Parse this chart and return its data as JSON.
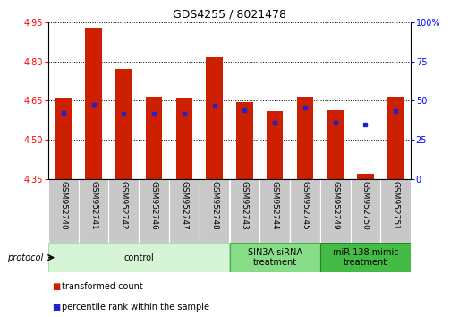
{
  "title": "GDS4255 / 8021478",
  "samples": [
    "GSM952740",
    "GSM952741",
    "GSM952742",
    "GSM952746",
    "GSM952747",
    "GSM952748",
    "GSM952743",
    "GSM952744",
    "GSM952745",
    "GSM952749",
    "GSM952750",
    "GSM952751"
  ],
  "bar_bottom": 4.35,
  "bar_tops": [
    4.66,
    4.93,
    4.77,
    4.665,
    4.66,
    4.815,
    4.645,
    4.61,
    4.665,
    4.615,
    4.37,
    4.665
  ],
  "blue_dot_values": [
    4.605,
    4.635,
    4.6,
    4.6,
    4.6,
    4.63,
    4.615,
    4.565,
    4.625,
    4.565,
    4.56,
    4.61
  ],
  "ylim": [
    4.35,
    4.95
  ],
  "y2lim": [
    0,
    100
  ],
  "yticks": [
    4.35,
    4.5,
    4.65,
    4.8,
    4.95
  ],
  "y2ticks": [
    0,
    25,
    50,
    75,
    100
  ],
  "bar_color": "#cc2000",
  "dot_color": "#2222cc",
  "bar_width": 0.55,
  "groups": [
    {
      "label": "control",
      "start": 0,
      "end": 6,
      "color": "#d6f5d6",
      "edge_color": "#aaddaa"
    },
    {
      "label": "SIN3A siRNA\ntreatment",
      "start": 6,
      "end": 9,
      "color": "#88dd88",
      "edge_color": "#44aa44"
    },
    {
      "label": "miR-138 mimic\ntreatment",
      "start": 9,
      "end": 12,
      "color": "#44bb44",
      "edge_color": "#228822"
    }
  ],
  "protocol_label": "protocol",
  "legend_items": [
    {
      "label": "transformed count",
      "color": "#cc2000"
    },
    {
      "label": "percentile rank within the sample",
      "color": "#2222cc"
    }
  ],
  "bg_color": "#ffffff",
  "label_bg": "#c8c8c8",
  "label_fontsize": 6.5,
  "title_fontsize": 9
}
